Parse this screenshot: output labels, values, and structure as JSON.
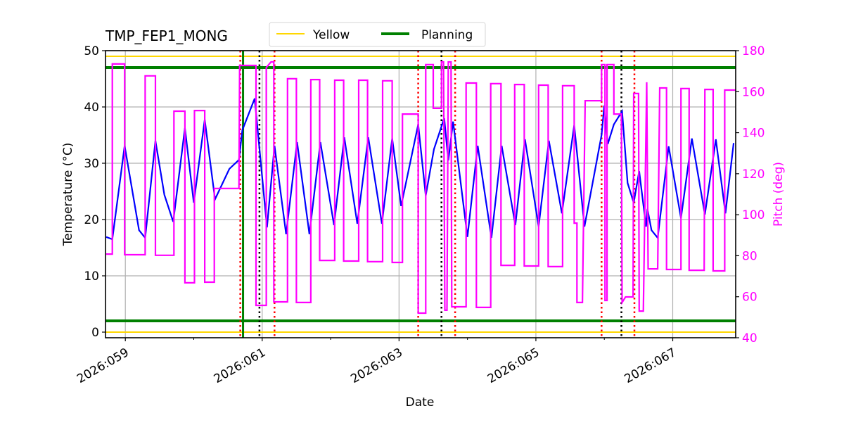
{
  "chart_data": {
    "type": "line",
    "title": "TMP_FEP1_MONG",
    "xlabel": "Date",
    "ylabel": "Temperature (°C)",
    "y2label": "Pitch (deg)",
    "xlim": [
      58.71,
      67.92
    ],
    "ylim": [
      -1,
      50
    ],
    "y2lim": [
      40,
      180
    ],
    "grid": true,
    "legend_placement": "top-center",
    "x_ticks": [
      {
        "value": 59,
        "label": "2026:059"
      },
      {
        "value": 61,
        "label": "2026:061"
      },
      {
        "value": 63,
        "label": "2026:063"
      },
      {
        "value": 65,
        "label": "2026:065"
      },
      {
        "value": 67,
        "label": "2026:067"
      }
    ],
    "x_minor_ticks": [
      60,
      62,
      64,
      66
    ],
    "y_ticks": [
      0,
      10,
      20,
      30,
      40,
      50
    ],
    "y2_ticks": [
      40,
      60,
      80,
      100,
      120,
      140,
      160,
      180
    ],
    "colors": {
      "temperature": "#0000ff",
      "pitch": "#ff00ff",
      "yellow": "#ffd700",
      "planning": "#008000",
      "red_marker": "#ff0000",
      "black_marker": "#000000",
      "grid": "#b0b0b0"
    },
    "limit_lines": [
      {
        "name": "Yellow",
        "values": [
          0,
          49
        ],
        "color": "#ffd700"
      },
      {
        "name": "Planning",
        "values": [
          2,
          47
        ],
        "color": "#008000"
      }
    ],
    "legend": [
      {
        "label": "Yellow",
        "color": "#ffd700"
      },
      {
        "label": "Planning",
        "color": "#008000"
      }
    ],
    "vertical_markers": {
      "red_dotted": [
        60.68,
        61.18,
        63.28,
        63.82,
        65.96,
        66.44
      ],
      "black_dotted": [
        60.96,
        63.62,
        66.25
      ],
      "green_solid": [
        60.72
      ]
    },
    "series": [
      {
        "axis": "left",
        "color": "#0000ff",
        "points": [
          [
            58.72,
            16.9
          ],
          [
            58.81,
            16.5
          ],
          [
            58.99,
            33.1
          ],
          [
            59.2,
            18.1
          ],
          [
            59.29,
            16.75
          ],
          [
            59.44,
            34.0
          ],
          [
            59.57,
            24.4
          ],
          [
            59.7,
            19.6
          ],
          [
            59.87,
            36.25
          ],
          [
            60.0,
            23.0
          ],
          [
            60.16,
            37.75
          ],
          [
            60.31,
            23.6
          ],
          [
            60.52,
            29.0
          ],
          [
            60.66,
            30.6
          ],
          [
            60.71,
            35.9
          ],
          [
            60.89,
            41.5
          ],
          [
            61.07,
            18.6
          ],
          [
            61.18,
            33.1
          ],
          [
            61.35,
            17.4
          ],
          [
            61.51,
            33.75
          ],
          [
            61.69,
            17.4
          ],
          [
            61.85,
            33.75
          ],
          [
            62.05,
            19.0
          ],
          [
            62.2,
            34.6
          ],
          [
            62.39,
            19.25
          ],
          [
            62.55,
            34.6
          ],
          [
            62.75,
            19.25
          ],
          [
            62.9,
            34.4
          ],
          [
            63.03,
            22.4
          ],
          [
            63.28,
            36.9
          ],
          [
            63.39,
            24.25
          ],
          [
            63.51,
            32.5
          ],
          [
            63.66,
            38.0
          ],
          [
            63.72,
            30.5
          ],
          [
            63.79,
            37.4
          ],
          [
            64.0,
            16.9
          ],
          [
            64.15,
            33.1
          ],
          [
            64.35,
            16.75
          ],
          [
            64.5,
            33.1
          ],
          [
            64.7,
            19.0
          ],
          [
            64.84,
            34.25
          ],
          [
            65.04,
            18.75
          ],
          [
            65.19,
            34.0
          ],
          [
            65.38,
            21.1
          ],
          [
            65.56,
            36.75
          ],
          [
            65.71,
            18.75
          ],
          [
            65.96,
            35.0
          ],
          [
            66.0,
            40.25
          ],
          [
            66.05,
            33.4
          ],
          [
            66.14,
            36.9
          ],
          [
            66.26,
            39.25
          ],
          [
            66.34,
            26.5
          ],
          [
            66.43,
            23.0
          ],
          [
            66.51,
            28.6
          ],
          [
            66.61,
            18.75
          ],
          [
            66.63,
            21.9
          ],
          [
            66.69,
            18.1
          ],
          [
            66.78,
            16.75
          ],
          [
            66.94,
            33.0
          ],
          [
            67.12,
            20.25
          ],
          [
            67.28,
            34.4
          ],
          [
            67.47,
            20.9
          ],
          [
            67.63,
            34.25
          ],
          [
            67.77,
            21.1
          ],
          [
            67.89,
            33.6
          ]
        ]
      },
      {
        "axis": "right",
        "color": "#ff00ff",
        "points": [
          [
            58.72,
            80.8
          ],
          [
            58.81,
            80.8
          ],
          [
            58.81,
            173.5
          ],
          [
            58.99,
            173.5
          ],
          [
            58.99,
            80.5
          ],
          [
            59.29,
            80.5
          ],
          [
            59.29,
            167.7
          ],
          [
            59.44,
            167.7
          ],
          [
            59.44,
            80.2
          ],
          [
            59.71,
            80.2
          ],
          [
            59.71,
            150.5
          ],
          [
            59.87,
            150.5
          ],
          [
            59.87,
            66.8
          ],
          [
            60.01,
            66.8
          ],
          [
            60.01,
            150.8
          ],
          [
            60.16,
            150.8
          ],
          [
            60.16,
            67.1
          ],
          [
            60.3,
            67.1
          ],
          [
            60.3,
            112.8
          ],
          [
            60.66,
            112.8
          ],
          [
            60.67,
            172.8
          ],
          [
            60.91,
            172.8
          ],
          [
            60.91,
            55.8
          ],
          [
            61.06,
            55.8
          ],
          [
            61.06,
            171.8
          ],
          [
            61.13,
            174.5
          ],
          [
            61.17,
            174.5
          ],
          [
            61.17,
            57.5
          ],
          [
            61.37,
            57.5
          ],
          [
            61.37,
            166.3
          ],
          [
            61.5,
            166.3
          ],
          [
            61.5,
            57.2
          ],
          [
            61.71,
            57.2
          ],
          [
            61.71,
            165.9
          ],
          [
            61.84,
            165.9
          ],
          [
            61.84,
            77.7
          ],
          [
            62.06,
            77.7
          ],
          [
            62.06,
            165.6
          ],
          [
            62.19,
            165.6
          ],
          [
            62.19,
            77.4
          ],
          [
            62.41,
            77.4
          ],
          [
            62.41,
            165.6
          ],
          [
            62.54,
            165.6
          ],
          [
            62.54,
            77.1
          ],
          [
            62.76,
            77.1
          ],
          [
            62.76,
            165.3
          ],
          [
            62.9,
            165.3
          ],
          [
            62.9,
            76.7
          ],
          [
            63.05,
            76.7
          ],
          [
            63.05,
            149.1
          ],
          [
            63.28,
            149.1
          ],
          [
            63.28,
            52.0
          ],
          [
            63.39,
            52.0
          ],
          [
            63.39,
            173.2
          ],
          [
            63.5,
            173.2
          ],
          [
            63.5,
            151.9
          ],
          [
            63.62,
            151.9
          ],
          [
            63.62,
            174.5
          ],
          [
            63.65,
            174.5
          ],
          [
            63.67,
            53.4
          ],
          [
            63.7,
            53.4
          ],
          [
            63.72,
            174.5
          ],
          [
            63.76,
            174.5
          ],
          [
            63.77,
            55.1
          ],
          [
            63.98,
            55.1
          ],
          [
            63.98,
            164.2
          ],
          [
            64.13,
            164.2
          ],
          [
            64.13,
            54.8
          ],
          [
            64.34,
            54.8
          ],
          [
            64.34,
            163.9
          ],
          [
            64.49,
            163.9
          ],
          [
            64.49,
            75.3
          ],
          [
            64.69,
            75.3
          ],
          [
            64.69,
            163.5
          ],
          [
            64.83,
            163.5
          ],
          [
            64.83,
            75.0
          ],
          [
            65.04,
            75.0
          ],
          [
            65.04,
            163.2
          ],
          [
            65.18,
            163.2
          ],
          [
            65.18,
            74.7
          ],
          [
            65.39,
            74.7
          ],
          [
            65.39,
            162.9
          ],
          [
            65.56,
            162.9
          ],
          [
            65.56,
            95.9
          ],
          [
            65.6,
            95.9
          ],
          [
            65.6,
            57.2
          ],
          [
            65.68,
            57.2
          ],
          [
            65.72,
            155.6
          ],
          [
            65.96,
            155.6
          ],
          [
            65.96,
            173.2
          ],
          [
            66.01,
            173.2
          ],
          [
            66.01,
            58.2
          ],
          [
            66.04,
            58.2
          ],
          [
            66.04,
            173.2
          ],
          [
            66.14,
            173.2
          ],
          [
            66.14,
            149.1
          ],
          [
            66.25,
            149.1
          ],
          [
            66.26,
            57.2
          ],
          [
            66.31,
            59.9
          ],
          [
            66.42,
            59.9
          ],
          [
            66.43,
            159.1
          ],
          [
            66.5,
            159.1
          ],
          [
            66.51,
            53.0
          ],
          [
            66.57,
            53.0
          ],
          [
            66.62,
            164.6
          ],
          [
            66.64,
            73.6
          ],
          [
            66.78,
            73.6
          ],
          [
            66.81,
            161.8
          ],
          [
            66.91,
            161.8
          ],
          [
            66.91,
            73.3
          ],
          [
            67.12,
            73.3
          ],
          [
            67.12,
            161.5
          ],
          [
            67.24,
            161.5
          ],
          [
            67.24,
            72.9
          ],
          [
            67.46,
            72.9
          ],
          [
            67.47,
            161.1
          ],
          [
            67.59,
            161.1
          ],
          [
            67.59,
            72.6
          ],
          [
            67.76,
            72.6
          ],
          [
            67.76,
            160.8
          ],
          [
            67.92,
            160.8
          ]
        ]
      }
    ]
  }
}
